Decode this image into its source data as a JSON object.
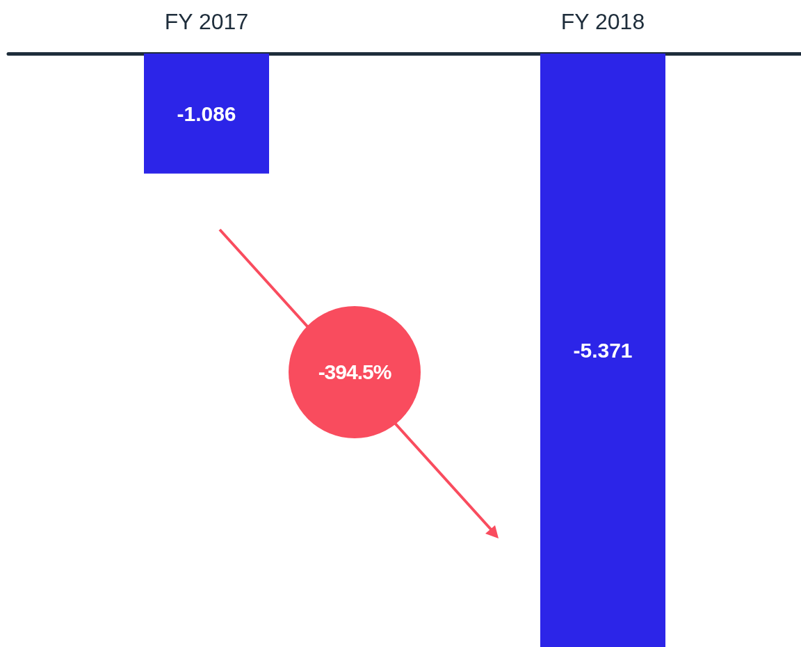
{
  "chart_data": {
    "type": "bar",
    "categories": [
      "FY 2017",
      "FY 2018"
    ],
    "values": [
      -1.086,
      -5.371
    ],
    "color": "#2c25e8",
    "data_labels": true,
    "annotations": [
      "-394.5%"
    ]
  }
}
